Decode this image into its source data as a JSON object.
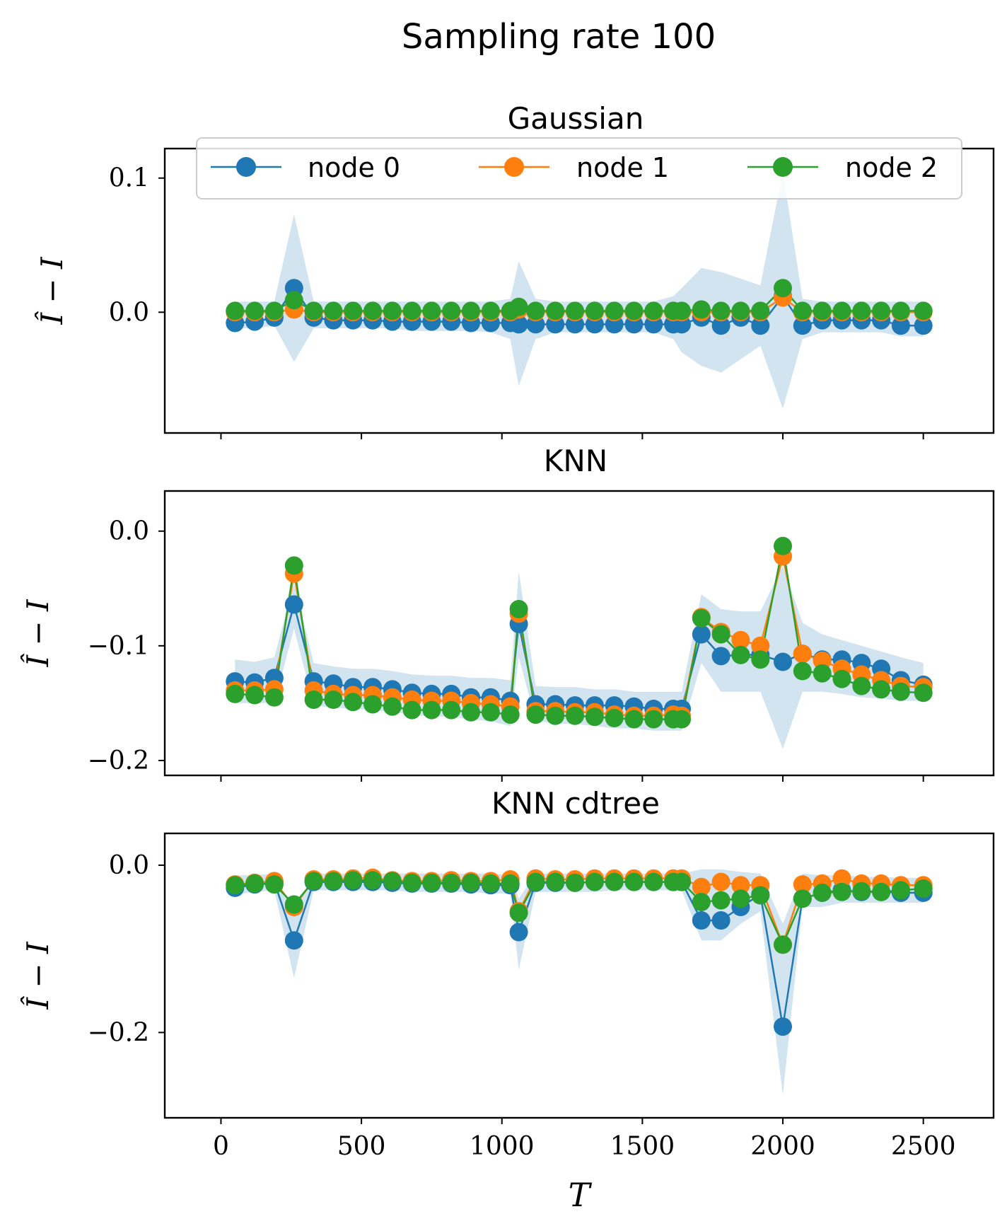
{
  "figure_title": "Sampling rate 100",
  "legend": [
    {
      "label": "node 0",
      "color": "#1f77b4"
    },
    {
      "label": "node 1",
      "color": "#ff7f0e"
    },
    {
      "label": "node 2",
      "color": "#2ca02c"
    }
  ],
  "chart_data": [
    {
      "type": "line",
      "title": "Gaussian",
      "xlabel": "",
      "ylabel": "Î − I",
      "x": [
        50,
        120,
        190,
        260,
        330,
        400,
        470,
        540,
        610,
        680,
        750,
        820,
        890,
        960,
        1030,
        1060,
        1120,
        1190,
        1260,
        1330,
        1400,
        1470,
        1540,
        1610,
        1640,
        1710,
        1780,
        1850,
        1920,
        2000,
        2070,
        2140,
        2210,
        2280,
        2350,
        2420,
        2500
      ],
      "ylim": [
        -0.09,
        0.122
      ],
      "yticks": [
        0.0,
        0.1
      ],
      "ytick_labels": [
        "0.0",
        "0.1"
      ],
      "band": {
        "series": "node 0",
        "lower": [
          -0.012,
          -0.012,
          -0.01,
          -0.037,
          -0.012,
          -0.012,
          -0.012,
          -0.012,
          -0.012,
          -0.014,
          -0.014,
          -0.014,
          -0.014,
          -0.015,
          -0.02,
          -0.055,
          -0.02,
          -0.015,
          -0.015,
          -0.015,
          -0.015,
          -0.015,
          -0.015,
          -0.02,
          -0.03,
          -0.04,
          -0.045,
          -0.035,
          -0.025,
          -0.072,
          -0.02,
          -0.015,
          -0.015,
          -0.015,
          -0.015,
          -0.018,
          -0.018
        ],
        "upper": [
          0.008,
          0.008,
          0.008,
          0.073,
          0.008,
          0.008,
          0.008,
          0.008,
          0.008,
          0.008,
          0.008,
          0.008,
          0.008,
          0.008,
          0.01,
          0.038,
          0.01,
          0.008,
          0.008,
          0.008,
          0.008,
          0.008,
          0.008,
          0.012,
          0.018,
          0.033,
          0.03,
          0.025,
          0.02,
          0.105,
          0.01,
          0.008,
          0.008,
          0.008,
          0.008,
          0.008,
          0.008
        ]
      },
      "series": [
        {
          "name": "node 0",
          "color": "#1f77b4",
          "values": [
            -0.008,
            -0.007,
            -0.004,
            0.018,
            -0.004,
            -0.006,
            -0.006,
            -0.006,
            -0.007,
            -0.007,
            -0.007,
            -0.007,
            -0.008,
            -0.008,
            -0.008,
            -0.009,
            -0.009,
            -0.009,
            -0.009,
            -0.009,
            -0.009,
            -0.009,
            -0.009,
            -0.009,
            -0.009,
            -0.004,
            -0.01,
            -0.004,
            -0.01,
            0.012,
            -0.01,
            -0.006,
            -0.006,
            -0.006,
            -0.006,
            -0.01,
            -0.01
          ]
        },
        {
          "name": "node 1",
          "color": "#ff7f0e",
          "values": [
            0.0,
            0.0,
            0.0,
            0.002,
            0.0,
            0.0,
            0.0,
            0.0,
            0.0,
            0.0,
            0.0,
            0.0,
            0.0,
            0.0,
            0.0,
            0.002,
            0.0,
            0.0,
            0.0,
            0.0,
            0.0,
            0.0,
            0.0,
            0.0,
            0.0,
            0.0,
            0.0,
            0.0,
            0.0,
            0.011,
            0.0,
            0.0,
            0.0,
            0.0,
            0.0,
            0.0,
            0.0
          ]
        },
        {
          "name": "node 2",
          "color": "#2ca02c",
          "values": [
            0.001,
            0.001,
            0.001,
            0.009,
            0.001,
            0.001,
            0.001,
            0.001,
            0.001,
            0.001,
            0.001,
            0.001,
            0.001,
            0.001,
            0.001,
            0.004,
            0.001,
            0.001,
            0.001,
            0.001,
            0.001,
            0.001,
            0.001,
            0.001,
            0.001,
            0.002,
            0.001,
            0.001,
            0.001,
            0.018,
            0.001,
            0.001,
            0.001,
            0.001,
            0.001,
            0.001,
            0.001
          ]
        }
      ]
    },
    {
      "type": "line",
      "title": "KNN",
      "xlabel": "",
      "ylabel": "Î − I",
      "x": [
        50,
        120,
        190,
        260,
        330,
        400,
        470,
        540,
        610,
        680,
        750,
        820,
        890,
        960,
        1030,
        1060,
        1120,
        1190,
        1260,
        1330,
        1400,
        1470,
        1540,
        1610,
        1640,
        1710,
        1780,
        1850,
        1920,
        2000,
        2070,
        2140,
        2210,
        2280,
        2350,
        2420,
        2500
      ],
      "ylim": [
        -0.213,
        0.035
      ],
      "yticks": [
        0.0,
        -0.1,
        -0.2
      ],
      "ytick_labels": [
        "0.0",
        "−0.1",
        "−0.2"
      ],
      "band": {
        "series": "node 0",
        "lower": [
          -0.15,
          -0.15,
          -0.15,
          -0.085,
          -0.152,
          -0.154,
          -0.155,
          -0.156,
          -0.158,
          -0.16,
          -0.162,
          -0.162,
          -0.164,
          -0.166,
          -0.17,
          -0.11,
          -0.165,
          -0.168,
          -0.168,
          -0.17,
          -0.172,
          -0.172,
          -0.174,
          -0.174,
          -0.174,
          -0.115,
          -0.14,
          -0.14,
          -0.14,
          -0.19,
          -0.14,
          -0.14,
          -0.142,
          -0.145,
          -0.146,
          -0.148,
          -0.148
        ],
        "upper": [
          -0.112,
          -0.114,
          -0.11,
          -0.045,
          -0.115,
          -0.118,
          -0.12,
          -0.12,
          -0.122,
          -0.125,
          -0.126,
          -0.126,
          -0.128,
          -0.128,
          -0.13,
          -0.035,
          -0.135,
          -0.136,
          -0.136,
          -0.138,
          -0.138,
          -0.14,
          -0.14,
          -0.14,
          -0.14,
          -0.055,
          -0.068,
          -0.07,
          -0.07,
          -0.03,
          -0.08,
          -0.09,
          -0.095,
          -0.1,
          -0.105,
          -0.11,
          -0.115
        ]
      },
      "series": [
        {
          "name": "node 0",
          "color": "#1f77b4",
          "values": [
            -0.131,
            -0.132,
            -0.128,
            -0.064,
            -0.131,
            -0.133,
            -0.136,
            -0.136,
            -0.138,
            -0.141,
            -0.142,
            -0.142,
            -0.145,
            -0.145,
            -0.148,
            -0.081,
            -0.151,
            -0.151,
            -0.152,
            -0.152,
            -0.152,
            -0.153,
            -0.155,
            -0.155,
            -0.155,
            -0.09,
            -0.109,
            -0.108,
            -0.108,
            -0.114,
            -0.107,
            -0.112,
            -0.112,
            -0.115,
            -0.12,
            -0.13,
            -0.134
          ]
        },
        {
          "name": "node 1",
          "color": "#ff7f0e",
          "values": [
            -0.139,
            -0.139,
            -0.138,
            -0.037,
            -0.139,
            -0.142,
            -0.143,
            -0.143,
            -0.145,
            -0.147,
            -0.148,
            -0.148,
            -0.15,
            -0.151,
            -0.153,
            -0.072,
            -0.157,
            -0.157,
            -0.158,
            -0.158,
            -0.16,
            -0.161,
            -0.161,
            -0.16,
            -0.161,
            -0.075,
            -0.088,
            -0.095,
            -0.1,
            -0.022,
            -0.107,
            -0.113,
            -0.12,
            -0.125,
            -0.13,
            -0.135,
            -0.136
          ]
        },
        {
          "name": "node 2",
          "color": "#2ca02c",
          "values": [
            -0.142,
            -0.143,
            -0.145,
            -0.03,
            -0.147,
            -0.147,
            -0.149,
            -0.151,
            -0.153,
            -0.156,
            -0.156,
            -0.156,
            -0.158,
            -0.158,
            -0.16,
            -0.068,
            -0.16,
            -0.161,
            -0.161,
            -0.162,
            -0.163,
            -0.164,
            -0.164,
            -0.164,
            -0.164,
            -0.076,
            -0.09,
            -0.108,
            -0.112,
            -0.013,
            -0.122,
            -0.124,
            -0.129,
            -0.135,
            -0.138,
            -0.14,
            -0.141
          ]
        }
      ]
    },
    {
      "type": "line",
      "title": "KNN cdtree",
      "xlabel": "T",
      "ylabel": "Î − I",
      "x": [
        50,
        120,
        190,
        260,
        330,
        400,
        470,
        540,
        610,
        680,
        750,
        820,
        890,
        960,
        1030,
        1060,
        1120,
        1190,
        1260,
        1330,
        1400,
        1470,
        1540,
        1610,
        1640,
        1710,
        1780,
        1850,
        1920,
        2000,
        2070,
        2140,
        2210,
        2280,
        2350,
        2420,
        2500
      ],
      "xlim": [
        -200,
        2750
      ],
      "xticks": [
        0,
        500,
        1000,
        1500,
        2000,
        2500
      ],
      "xtick_labels": [
        "0",
        "500",
        "1000",
        "1500",
        "2000",
        "2500"
      ],
      "ylim": [
        -0.302,
        0.038
      ],
      "yticks": [
        0.0,
        -0.2
      ],
      "ytick_labels": [
        "0.0",
        "−0.2"
      ],
      "band": {
        "series": "node 0",
        "lower": [
          -0.035,
          -0.032,
          -0.03,
          -0.135,
          -0.03,
          -0.03,
          -0.03,
          -0.03,
          -0.03,
          -0.032,
          -0.032,
          -0.032,
          -0.032,
          -0.034,
          -0.034,
          -0.125,
          -0.032,
          -0.032,
          -0.032,
          -0.032,
          -0.03,
          -0.03,
          -0.03,
          -0.03,
          -0.03,
          -0.09,
          -0.09,
          -0.07,
          -0.055,
          -0.275,
          -0.05,
          -0.05,
          -0.045,
          -0.045,
          -0.045,
          -0.045,
          -0.045
        ],
        "upper": [
          -0.012,
          -0.012,
          -0.01,
          -0.055,
          -0.01,
          -0.01,
          -0.01,
          -0.01,
          -0.01,
          -0.01,
          -0.01,
          -0.01,
          -0.01,
          -0.01,
          -0.012,
          -0.04,
          -0.01,
          -0.01,
          -0.01,
          -0.01,
          -0.01,
          -0.01,
          -0.01,
          -0.01,
          -0.01,
          -0.005,
          -0.005,
          -0.008,
          -0.01,
          -0.07,
          -0.01,
          -0.012,
          -0.012,
          -0.014,
          -0.014,
          -0.015,
          -0.015
        ]
      },
      "series": [
        {
          "name": "node 0",
          "color": "#1f77b4",
          "values": [
            -0.027,
            -0.023,
            -0.02,
            -0.09,
            -0.02,
            -0.02,
            -0.02,
            -0.02,
            -0.021,
            -0.022,
            -0.022,
            -0.022,
            -0.023,
            -0.024,
            -0.024,
            -0.08,
            -0.021,
            -0.021,
            -0.021,
            -0.02,
            -0.02,
            -0.02,
            -0.02,
            -0.02,
            -0.02,
            -0.066,
            -0.066,
            -0.05,
            -0.035,
            -0.193,
            -0.04,
            -0.033,
            -0.03,
            -0.032,
            -0.032,
            -0.033,
            -0.033
          ]
        },
        {
          "name": "node 1",
          "color": "#ff7f0e",
          "values": [
            -0.023,
            -0.021,
            -0.019,
            -0.05,
            -0.017,
            -0.017,
            -0.016,
            -0.015,
            -0.018,
            -0.019,
            -0.019,
            -0.018,
            -0.019,
            -0.019,
            -0.017,
            -0.055,
            -0.016,
            -0.017,
            -0.017,
            -0.016,
            -0.016,
            -0.016,
            -0.016,
            -0.016,
            -0.016,
            -0.026,
            -0.02,
            -0.024,
            -0.024,
            -0.095,
            -0.023,
            -0.022,
            -0.016,
            -0.022,
            -0.022,
            -0.024,
            -0.024
          ]
        },
        {
          "name": "node 2",
          "color": "#2ca02c",
          "values": [
            -0.024,
            -0.022,
            -0.023,
            -0.047,
            -0.019,
            -0.019,
            -0.018,
            -0.018,
            -0.019,
            -0.021,
            -0.021,
            -0.021,
            -0.021,
            -0.022,
            -0.022,
            -0.057,
            -0.02,
            -0.02,
            -0.021,
            -0.02,
            -0.02,
            -0.02,
            -0.02,
            -0.02,
            -0.02,
            -0.044,
            -0.042,
            -0.04,
            -0.036,
            -0.095,
            -0.04,
            -0.033,
            -0.032,
            -0.031,
            -0.032,
            -0.03,
            -0.028
          ]
        }
      ]
    }
  ]
}
